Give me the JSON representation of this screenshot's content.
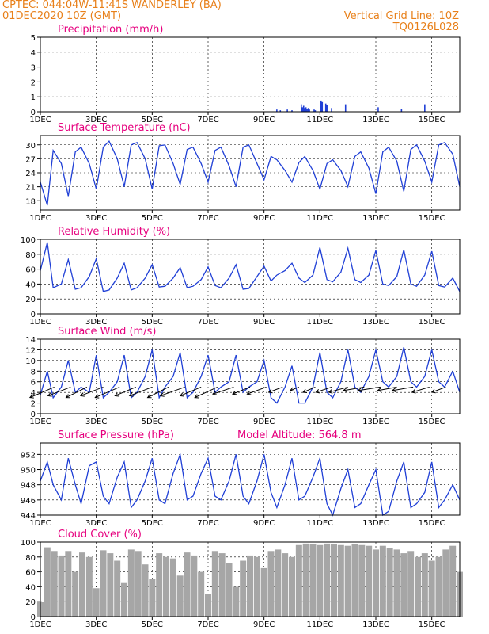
{
  "header": {
    "station_line": "CPTEC:   044:04W-11:41S   WANDERLEY (BA)",
    "date_line": "01DEC2020 10Z (GMT)",
    "grid_note": "Vertical Grid Line: 10Z",
    "model_code": "TQ0126L028"
  },
  "colors": {
    "header": "#e8801a",
    "title": "#e6007e",
    "series": "#1f3fd6",
    "cloud": "#a6a6a6",
    "wind_arrow": "#000000"
  },
  "chart_data": [
    {
      "type": "bar",
      "title": "Precipitation (mm/h)",
      "xlim": [
        0,
        360
      ],
      "ylim": [
        0,
        5
      ],
      "yticks": [
        0,
        1,
        2,
        3,
        4,
        5
      ],
      "xticks": [
        0,
        48,
        96,
        144,
        192,
        240,
        288,
        336
      ],
      "xticklabels": [
        "1DEC",
        "3DEC",
        "5DEC",
        "7DEC",
        "9DEC",
        "11DEC",
        "13DEC",
        "15DEC"
      ],
      "x": [
        203,
        206,
        212,
        216,
        224,
        225,
        226,
        227,
        228,
        229,
        230,
        231,
        235,
        236,
        241,
        242,
        245,
        246,
        250,
        262,
        290,
        310,
        330
      ],
      "values": [
        0.15,
        0.1,
        0.15,
        0.1,
        0.5,
        0.3,
        0.4,
        0.25,
        0.3,
        0.2,
        0.25,
        0.15,
        0.15,
        0.1,
        0.75,
        0.65,
        0.55,
        0.45,
        0.25,
        0.5,
        0.3,
        0.2,
        0.5
      ]
    },
    {
      "type": "line",
      "title": "Surface Temperature (nC)",
      "xlim": [
        0,
        360
      ],
      "ylim": [
        16,
        32
      ],
      "yticks": [
        18,
        21,
        24,
        27,
        30
      ],
      "xticks": [
        0,
        48,
        96,
        144,
        192,
        240,
        288,
        336
      ],
      "xticklabels": [
        "1DEC",
        "3DEC",
        "5DEC",
        "7DEC",
        "9DEC",
        "11DEC",
        "13DEC",
        "15DEC"
      ],
      "x": [
        0,
        6,
        11,
        18,
        24,
        30,
        35,
        42,
        48,
        54,
        59,
        66,
        72,
        78,
        83,
        90,
        96,
        102,
        107,
        114,
        120,
        126,
        131,
        138,
        144,
        150,
        155,
        162,
        168,
        174,
        179,
        186,
        192,
        198,
        203,
        210,
        216,
        222,
        227,
        234,
        240,
        246,
        251,
        258,
        264,
        270,
        275,
        282,
        288,
        294,
        299,
        306,
        312,
        318,
        323,
        330,
        336,
        342,
        347,
        354,
        360
      ],
      "values": [
        22,
        17,
        28.8,
        26,
        19,
        28.5,
        29.5,
        26,
        20.5,
        29.5,
        30.8,
        27,
        21,
        30,
        30.5,
        27,
        20.5,
        29.8,
        30,
        26,
        21.5,
        29,
        29.5,
        26,
        22,
        28.8,
        29.5,
        25.5,
        21,
        29.5,
        30,
        26,
        22.5,
        27.5,
        26.8,
        24.5,
        22,
        26.2,
        27.5,
        24.5,
        20.5,
        26,
        26.8,
        24.5,
        21,
        27.5,
        28.5,
        25,
        19.5,
        28.5,
        29.5,
        26.5,
        20,
        29,
        30,
        26.5,
        22,
        30,
        30.5,
        28,
        21
      ]
    },
    {
      "type": "line",
      "title": "Relative Humidity (%)",
      "xlim": [
        0,
        360
      ],
      "ylim": [
        0,
        100
      ],
      "yticks": [
        0,
        20,
        40,
        60,
        80,
        100
      ],
      "xticks": [
        0,
        48,
        96,
        144,
        192,
        240,
        288,
        336
      ],
      "xticklabels": [
        "1DEC",
        "3DEC",
        "5DEC",
        "7DEC",
        "9DEC",
        "11DEC",
        "13DEC",
        "15DEC"
      ],
      "x": [
        0,
        6,
        11,
        18,
        24,
        30,
        35,
        42,
        48,
        54,
        59,
        66,
        72,
        78,
        83,
        90,
        96,
        102,
        107,
        114,
        120,
        126,
        131,
        138,
        144,
        150,
        155,
        162,
        168,
        174,
        179,
        186,
        192,
        198,
        203,
        210,
        216,
        222,
        227,
        234,
        240,
        246,
        251,
        258,
        264,
        270,
        275,
        282,
        288,
        294,
        299,
        306,
        312,
        318,
        323,
        330,
        336,
        342,
        347,
        354,
        360
      ],
      "values": [
        58,
        96,
        35,
        40,
        73,
        33,
        35,
        50,
        74,
        30,
        32,
        48,
        68,
        32,
        35,
        48,
        66,
        36,
        37,
        48,
        62,
        35,
        37,
        46,
        63,
        38,
        35,
        48,
        66,
        33,
        34,
        50,
        64,
        44,
        52,
        58,
        68,
        48,
        42,
        52,
        89,
        46,
        43,
        56,
        88,
        46,
        42,
        52,
        85,
        40,
        38,
        50,
        86,
        40,
        37,
        52,
        84,
        38,
        36,
        48,
        30
      ]
    },
    {
      "type": "line",
      "title": "Surface Wind (m/s)",
      "xlim": [
        0,
        360
      ],
      "ylim": [
        0,
        14
      ],
      "yticks": [
        0,
        2,
        4,
        6,
        8,
        10,
        12,
        14
      ],
      "xticks": [
        0,
        48,
        96,
        144,
        192,
        240,
        288,
        336
      ],
      "xticklabels": [
        "1DEC",
        "3DEC",
        "5DEC",
        "7DEC",
        "9DEC",
        "11DEC",
        "13DEC",
        "15DEC"
      ],
      "x": [
        0,
        6,
        11,
        18,
        24,
        30,
        35,
        42,
        48,
        54,
        59,
        66,
        72,
        78,
        83,
        90,
        96,
        102,
        107,
        114,
        120,
        126,
        131,
        138,
        144,
        150,
        155,
        162,
        168,
        174,
        179,
        186,
        192,
        198,
        203,
        210,
        216,
        222,
        227,
        234,
        240,
        246,
        251,
        258,
        264,
        270,
        275,
        282,
        288,
        294,
        299,
        306,
        312,
        318,
        323,
        330,
        336,
        342,
        347,
        354,
        360
      ],
      "values": [
        3.5,
        8,
        3,
        5,
        10,
        4,
        5,
        4,
        11,
        3,
        4,
        6,
        11,
        3,
        4,
        7,
        12,
        3,
        5,
        7,
        11.5,
        3,
        4,
        7,
        11,
        4,
        5,
        6,
        11,
        4,
        5,
        6,
        10,
        3,
        2,
        5,
        9,
        2,
        2,
        5,
        11.5,
        4,
        3,
        6,
        12,
        5,
        4,
        7,
        12,
        6,
        5,
        7,
        12.5,
        6,
        5,
        7,
        12,
        6,
        5,
        8,
        4
      ],
      "wind_vectors": {
        "x": [
          12,
          26,
          40,
          54,
          68,
          82,
          96,
          110,
          124,
          138,
          152,
          166,
          180,
          194,
          208,
          222,
          236,
          250,
          264,
          278,
          292,
          306,
          320,
          334,
          348
        ],
        "u": [
          -14,
          -13,
          -12,
          -13,
          -14,
          -12,
          -13,
          -12,
          -14,
          -12,
          -13,
          -12,
          -10,
          -11,
          -8,
          -5,
          -7,
          -9,
          -11,
          -12,
          -13,
          -11,
          -12,
          -10,
          -8
        ],
        "v": [
          -6,
          -5,
          -6,
          -5,
          -6,
          -5,
          -5,
          -6,
          -5,
          -5,
          -6,
          -4,
          -4,
          -4,
          -3,
          -2,
          -3,
          -3,
          -3,
          -2,
          -2,
          -2,
          -2,
          -3,
          -3
        ]
      }
    },
    {
      "type": "line",
      "title": "Surface Pressure (hPa)",
      "annotation": "Model Altitude: 564.8 m",
      "xlim": [
        0,
        360
      ],
      "ylim": [
        944,
        953.5
      ],
      "yticks": [
        944,
        946,
        948,
        950,
        952
      ],
      "xticks": [
        0,
        48,
        96,
        144,
        192,
        240,
        288,
        336
      ],
      "xticklabels": [
        "1DEC",
        "3DEC",
        "5DEC",
        "7DEC",
        "9DEC",
        "11DEC",
        "13DEC",
        "15DEC"
      ],
      "x": [
        0,
        6,
        11,
        18,
        24,
        30,
        35,
        42,
        48,
        54,
        59,
        66,
        72,
        78,
        83,
        90,
        96,
        102,
        107,
        114,
        120,
        126,
        131,
        138,
        144,
        150,
        155,
        162,
        168,
        174,
        179,
        186,
        192,
        198,
        203,
        210,
        216,
        222,
        227,
        234,
        240,
        246,
        251,
        258,
        264,
        270,
        275,
        282,
        288,
        294,
        299,
        306,
        312,
        318,
        323,
        330,
        336,
        342,
        347,
        354,
        360
      ],
      "values": [
        948.5,
        951,
        948,
        946,
        951.5,
        948,
        945.5,
        950.5,
        951,
        946.5,
        945.5,
        949,
        951,
        945,
        946,
        948.5,
        951.5,
        946,
        945.5,
        949.5,
        952,
        946,
        946.5,
        949.5,
        951.5,
        946.5,
        946,
        948.5,
        952,
        946.5,
        945.5,
        948.5,
        952,
        947,
        945,
        948,
        951.5,
        946,
        946.5,
        949,
        951.5,
        945.5,
        944,
        947.5,
        950,
        945,
        945.5,
        948,
        950,
        944,
        944.5,
        948.5,
        951,
        945,
        945.5,
        947,
        951,
        945,
        946,
        948,
        946
      ]
    },
    {
      "type": "bar",
      "title": "Cloud Cover (%)",
      "xlim": [
        0,
        360
      ],
      "ylim": [
        0,
        100
      ],
      "yticks": [
        0,
        20,
        40,
        60,
        80,
        100
      ],
      "xticks": [
        0,
        48,
        96,
        144,
        192,
        240,
        288,
        336
      ],
      "xticklabels": [
        "1DEC",
        "3DEC",
        "5DEC",
        "7DEC",
        "9DEC",
        "11DEC",
        "13DEC",
        "15DEC"
      ],
      "x": [
        0,
        6,
        12,
        18,
        24,
        30,
        36,
        42,
        48,
        54,
        60,
        66,
        72,
        78,
        84,
        90,
        96,
        102,
        108,
        114,
        120,
        126,
        132,
        138,
        144,
        150,
        156,
        162,
        168,
        174,
        180,
        186,
        192,
        198,
        204,
        210,
        216,
        222,
        228,
        234,
        240,
        246,
        252,
        258,
        264,
        270,
        276,
        282,
        288,
        294,
        300,
        306,
        312,
        318,
        324,
        330,
        336,
        342,
        348,
        354,
        360
      ],
      "values": [
        20,
        93,
        88,
        82,
        88,
        60,
        86,
        80,
        38,
        89,
        85,
        75,
        45,
        90,
        88,
        70,
        50,
        85,
        80,
        78,
        55,
        86,
        82,
        60,
        30,
        88,
        85,
        72,
        40,
        75,
        82,
        80,
        65,
        88,
        90,
        85,
        80,
        96,
        98,
        97,
        96,
        98,
        97,
        96,
        95,
        97,
        96,
        95,
        90,
        95,
        92,
        90,
        85,
        88,
        80,
        85,
        75,
        80,
        90,
        95,
        60
      ]
    }
  ]
}
